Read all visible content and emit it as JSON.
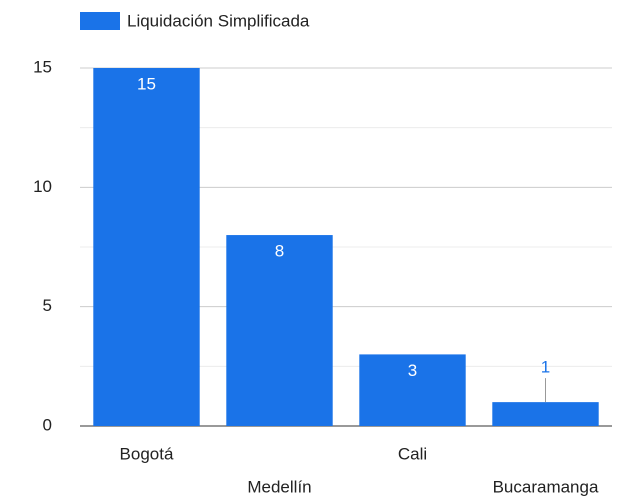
{
  "chart_data": {
    "type": "bar",
    "legend": "Liquidación Simplificada",
    "categories": [
      "Bogotá",
      "Medellín",
      "Cali",
      "Bucaramanga"
    ],
    "series": [
      {
        "name": "Liquidación Simplificada",
        "color": "#1a73e8",
        "values": [
          15,
          8,
          3,
          1
        ]
      }
    ],
    "ylim": [
      0,
      15
    ],
    "yticks": [
      0,
      5,
      10,
      15
    ],
    "minor_gridlines": [
      2.5,
      7.5,
      12.5
    ],
    "grid": true,
    "legend_position": "top-left"
  }
}
